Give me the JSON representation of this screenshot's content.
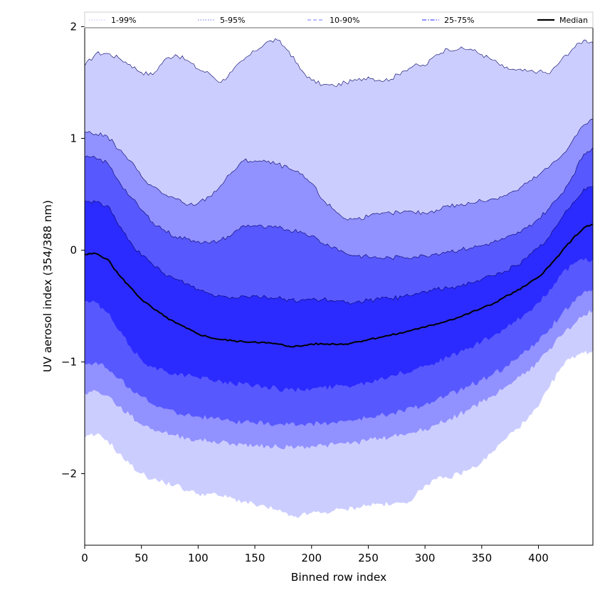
{
  "chart_data": {
    "type": "area",
    "title": "",
    "xlabel": "Binned row index",
    "ylabel": "UV aerosol index (354/388 nm)",
    "xlim": [
      0,
      448
    ],
    "ylim": [
      -2.64,
      2.13
    ],
    "xticks": [
      0,
      50,
      100,
      150,
      200,
      250,
      300,
      350,
      400
    ],
    "yticks": [
      -2,
      -1,
      0,
      1,
      2
    ],
    "ytick_labels": [
      "−2",
      "−1",
      "0",
      "1",
      "2"
    ],
    "legend": {
      "position": "top",
      "entries": [
        {
          "label": "1-99%",
          "style": "dotted",
          "color": "#c8c8ff"
        },
        {
          "label": "5-95%",
          "style": "dotted",
          "color": "#8888ee"
        },
        {
          "label": "10-90%",
          "style": "dashed",
          "color": "#9090ff"
        },
        {
          "label": "25-75%",
          "style": "dashdot",
          "color": "#5050ff"
        },
        {
          "label": "Median",
          "style": "solid",
          "color": "#000000"
        }
      ]
    },
    "x": [
      0,
      10,
      20,
      30,
      40,
      50,
      60,
      70,
      80,
      90,
      100,
      110,
      120,
      130,
      140,
      150,
      160,
      170,
      180,
      190,
      200,
      210,
      220,
      230,
      240,
      250,
      260,
      270,
      280,
      290,
      300,
      310,
      320,
      330,
      340,
      350,
      360,
      370,
      380,
      390,
      400,
      410,
      420,
      430,
      440,
      448
    ],
    "series": [
      {
        "name": "1-99%",
        "color": "#cccdff",
        "upper": [
          1.65,
          1.76,
          1.76,
          1.72,
          1.66,
          1.59,
          1.57,
          1.7,
          1.75,
          1.7,
          1.62,
          1.58,
          1.5,
          1.6,
          1.7,
          1.78,
          1.86,
          1.88,
          1.78,
          1.62,
          1.52,
          1.48,
          1.47,
          1.5,
          1.52,
          1.55,
          1.52,
          1.53,
          1.6,
          1.65,
          1.65,
          1.75,
          1.8,
          1.8,
          1.8,
          1.75,
          1.7,
          1.63,
          1.61,
          1.6,
          1.6,
          1.58,
          1.7,
          1.8,
          1.88,
          1.86
        ],
        "lower": [
          -1.68,
          -1.65,
          -1.7,
          -1.82,
          -1.92,
          -2.0,
          -2.05,
          -2.08,
          -2.1,
          -2.15,
          -2.18,
          -2.18,
          -2.2,
          -2.22,
          -2.25,
          -2.28,
          -2.3,
          -2.33,
          -2.38,
          -2.38,
          -2.35,
          -2.35,
          -2.33,
          -2.32,
          -2.3,
          -2.28,
          -2.27,
          -2.28,
          -2.26,
          -2.22,
          -2.1,
          -2.05,
          -2.04,
          -2.0,
          -1.96,
          -1.9,
          -1.8,
          -1.7,
          -1.6,
          -1.52,
          -1.4,
          -1.22,
          -1.05,
          -0.95,
          -0.92,
          -0.9
        ]
      },
      {
        "name": "5-95%",
        "color": "#9191ff",
        "upper": [
          1.06,
          1.04,
          1.02,
          0.9,
          0.8,
          0.66,
          0.57,
          0.5,
          0.46,
          0.4,
          0.42,
          0.48,
          0.58,
          0.7,
          0.8,
          0.8,
          0.79,
          0.77,
          0.73,
          0.68,
          0.6,
          0.45,
          0.36,
          0.28,
          0.28,
          0.3,
          0.32,
          0.33,
          0.34,
          0.34,
          0.33,
          0.36,
          0.4,
          0.4,
          0.42,
          0.44,
          0.46,
          0.49,
          0.53,
          0.6,
          0.67,
          0.75,
          0.84,
          0.98,
          1.12,
          1.17
        ],
        "lower": [
          -1.28,
          -1.26,
          -1.3,
          -1.4,
          -1.48,
          -1.56,
          -1.6,
          -1.63,
          -1.66,
          -1.68,
          -1.7,
          -1.71,
          -1.72,
          -1.73,
          -1.74,
          -1.75,
          -1.75,
          -1.76,
          -1.76,
          -1.76,
          -1.75,
          -1.75,
          -1.74,
          -1.73,
          -1.72,
          -1.7,
          -1.68,
          -1.67,
          -1.65,
          -1.63,
          -1.6,
          -1.56,
          -1.52,
          -1.47,
          -1.42,
          -1.36,
          -1.3,
          -1.23,
          -1.16,
          -1.08,
          -1.0,
          -0.88,
          -0.77,
          -0.68,
          -0.58,
          -0.54
        ]
      },
      {
        "name": "10-90%",
        "color": "#5858ff",
        "upper": [
          0.83,
          0.82,
          0.78,
          0.62,
          0.48,
          0.36,
          0.25,
          0.18,
          0.12,
          0.1,
          0.08,
          0.06,
          0.09,
          0.14,
          0.22,
          0.22,
          0.2,
          0.2,
          0.18,
          0.17,
          0.13,
          0.06,
          0.03,
          -0.03,
          -0.05,
          -0.06,
          -0.07,
          -0.07,
          -0.06,
          -0.06,
          -0.05,
          -0.03,
          -0.01,
          0.0,
          0.02,
          0.04,
          0.07,
          0.1,
          0.14,
          0.2,
          0.28,
          0.38,
          0.5,
          0.66,
          0.86,
          0.92
        ],
        "lower": [
          -1.02,
          -1.0,
          -1.06,
          -1.15,
          -1.23,
          -1.31,
          -1.38,
          -1.42,
          -1.45,
          -1.47,
          -1.49,
          -1.5,
          -1.52,
          -1.53,
          -1.54,
          -1.55,
          -1.55,
          -1.56,
          -1.56,
          -1.56,
          -1.55,
          -1.55,
          -1.54,
          -1.53,
          -1.52,
          -1.5,
          -1.48,
          -1.46,
          -1.44,
          -1.41,
          -1.38,
          -1.34,
          -1.3,
          -1.26,
          -1.21,
          -1.16,
          -1.11,
          -1.05,
          -0.98,
          -0.9,
          -0.82,
          -0.7,
          -0.58,
          -0.46,
          -0.37,
          -0.35
        ]
      },
      {
        "name": "25-75%",
        "color": "#2b2bff",
        "upper": [
          0.44,
          0.43,
          0.4,
          0.22,
          0.08,
          -0.05,
          -0.13,
          -0.21,
          -0.26,
          -0.3,
          -0.35,
          -0.39,
          -0.41,
          -0.42,
          -0.41,
          -0.41,
          -0.42,
          -0.43,
          -0.44,
          -0.45,
          -0.44,
          -0.44,
          -0.46,
          -0.47,
          -0.46,
          -0.45,
          -0.44,
          -0.43,
          -0.42,
          -0.4,
          -0.37,
          -0.35,
          -0.34,
          -0.32,
          -0.29,
          -0.26,
          -0.23,
          -0.19,
          -0.14,
          -0.07,
          0.02,
          0.12,
          0.28,
          0.42,
          0.55,
          0.57
        ],
        "lower": [
          -0.46,
          -0.47,
          -0.56,
          -0.72,
          -0.86,
          -0.98,
          -1.05,
          -1.08,
          -1.1,
          -1.12,
          -1.14,
          -1.16,
          -1.17,
          -1.19,
          -1.2,
          -1.21,
          -1.22,
          -1.24,
          -1.25,
          -1.25,
          -1.24,
          -1.23,
          -1.22,
          -1.21,
          -1.2,
          -1.18,
          -1.15,
          -1.12,
          -1.1,
          -1.07,
          -1.03,
          -1.0,
          -0.96,
          -0.92,
          -0.87,
          -0.82,
          -0.77,
          -0.71,
          -0.64,
          -0.56,
          -0.47,
          -0.35,
          -0.22,
          -0.13,
          -0.09,
          -0.08
        ]
      },
      {
        "name": "Median",
        "color": "#000000",
        "values": [
          -0.04,
          -0.03,
          -0.08,
          -0.22,
          -0.33,
          -0.44,
          -0.52,
          -0.59,
          -0.65,
          -0.7,
          -0.75,
          -0.78,
          -0.8,
          -0.81,
          -0.82,
          -0.82,
          -0.83,
          -0.84,
          -0.86,
          -0.86,
          -0.84,
          -0.84,
          -0.84,
          -0.84,
          -0.82,
          -0.8,
          -0.78,
          -0.76,
          -0.74,
          -0.71,
          -0.69,
          -0.66,
          -0.63,
          -0.6,
          -0.56,
          -0.52,
          -0.48,
          -0.42,
          -0.37,
          -0.31,
          -0.24,
          -0.14,
          -0.02,
          0.1,
          0.2,
          0.23
        ]
      }
    ]
  }
}
